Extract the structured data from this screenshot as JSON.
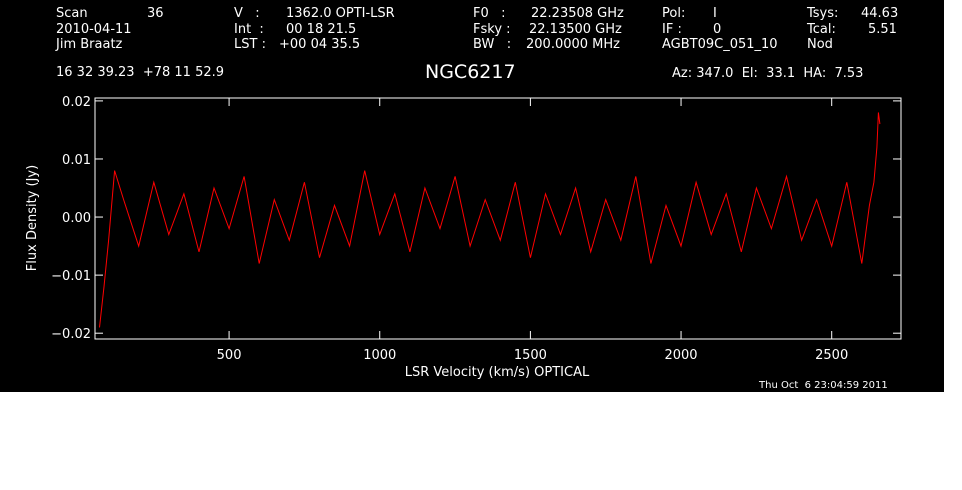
{
  "header": {
    "scan_label": "Scan",
    "scan_value": "36",
    "date": "2010-04-11",
    "observer": "Jim Braatz",
    "velocity_label": "V   :",
    "velocity_value": "1362.0 OPTI-LSR",
    "int_label": "Int  :",
    "int_value": "00 18 21.5",
    "lst_label": "LST :",
    "lst_value": "+00 04 35.5",
    "f0_label": "F0   :",
    "f0_value": "22.23508 GHz",
    "fsky_label": "Fsky :",
    "fsky_value": "22.13500 GHz",
    "bw_label": "BW   :",
    "bw_value": "200.0000 MHz",
    "pol_label": "Pol:",
    "pol_value": "I",
    "if_label": "IF :",
    "if_value": "0",
    "project": "AGBT09C_051_10",
    "tsys_label": "Tsys:",
    "tsys_value": "44.63",
    "tcal_label": "Tcal:",
    "tcal_value": "5.51",
    "mode": "Nod",
    "coordinates": "16 32 39.23  +78 11 52.9",
    "source": "NGC6217",
    "az_el_ha": "Az: 347.0  El:  33.1  HA:  7.53",
    "timestamp": "Thu Oct  6 23:04:59 2011"
  },
  "colors": {
    "background": "#000000",
    "foreground": "#ffffff",
    "spectrum": "#ff0000"
  },
  "chart_data": {
    "type": "line",
    "title": "NGC6217",
    "xlabel": "LSR Velocity (km/s) OPTICAL",
    "ylabel": "Flux Density (Jy)",
    "xlim": [
      55,
      2730
    ],
    "ylim": [
      -0.021,
      0.0205
    ],
    "x_ticks": [
      500,
      1000,
      1500,
      2000,
      2500
    ],
    "x_tick_labels": [
      "500",
      "1000",
      "1500",
      "2000",
      "2500"
    ],
    "y_ticks": [
      -0.02,
      -0.01,
      0.0,
      0.01,
      0.02
    ],
    "y_tick_labels": [
      "−0.02",
      "−0.01",
      "0.00",
      "0.01",
      "0.02"
    ],
    "grid": false,
    "series": [
      {
        "color": "#ff0000",
        "x": [
          70,
          85,
          100,
          120,
          150,
          200,
          250,
          300,
          350,
          400,
          450,
          500,
          550,
          600,
          650,
          700,
          750,
          800,
          850,
          900,
          950,
          1000,
          1050,
          1100,
          1150,
          1200,
          1250,
          1300,
          1350,
          1400,
          1450,
          1500,
          1550,
          1600,
          1650,
          1700,
          1750,
          1800,
          1850,
          1900,
          1950,
          2000,
          2050,
          2100,
          2150,
          2200,
          2250,
          2300,
          2350,
          2400,
          2450,
          2500,
          2550,
          2600,
          2625,
          2640,
          2650,
          2655,
          2660
        ],
        "y": [
          -0.019,
          -0.012,
          -0.004,
          0.008,
          0.003,
          -0.005,
          0.006,
          -0.003,
          0.004,
          -0.006,
          0.005,
          -0.002,
          0.007,
          -0.008,
          0.003,
          -0.004,
          0.006,
          -0.007,
          0.002,
          -0.005,
          0.008,
          -0.003,
          0.004,
          -0.006,
          0.005,
          -0.002,
          0.007,
          -0.005,
          0.003,
          -0.004,
          0.006,
          -0.007,
          0.004,
          -0.003,
          0.005,
          -0.006,
          0.003,
          -0.004,
          0.007,
          -0.008,
          0.002,
          -0.005,
          0.006,
          -0.003,
          0.004,
          -0.006,
          0.005,
          -0.002,
          0.007,
          -0.004,
          0.003,
          -0.005,
          0.006,
          -0.008,
          0.002,
          0.006,
          0.012,
          0.018,
          0.016
        ]
      }
    ]
  }
}
